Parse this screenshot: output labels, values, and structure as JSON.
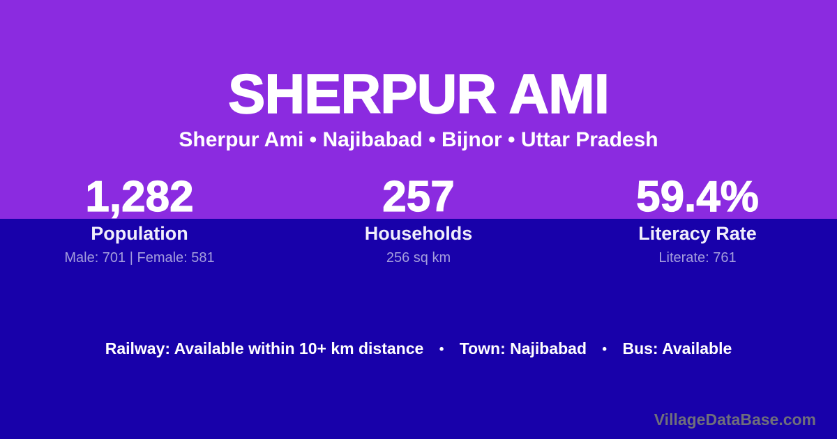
{
  "colors": {
    "top_background": "#8B2BE0",
    "bottom_background": "#1801AA",
    "title_text": "#FFFFFF",
    "label_text": "#F0EEFB",
    "detail_text": "#A49EDD",
    "watermark_text": "#6F6F7B"
  },
  "header": {
    "title": "SHERPUR AMI",
    "breadcrumb": "Sherpur Ami • Najibabad • Bijnor • Uttar Pradesh"
  },
  "stats": [
    {
      "value": "1,282",
      "label": "Population",
      "detail": "Male: 701 | Female: 581"
    },
    {
      "value": "257",
      "label": "Households",
      "detail": "256 sq km"
    },
    {
      "value": "59.4%",
      "label": "Literacy Rate",
      "detail": "Literate: 761"
    }
  ],
  "transport": {
    "separator": "•",
    "items": [
      "Railway: Available within 10+ km distance",
      "Town: Najibabad",
      "Bus: Available"
    ]
  },
  "watermark": "VillageDataBase.com"
}
